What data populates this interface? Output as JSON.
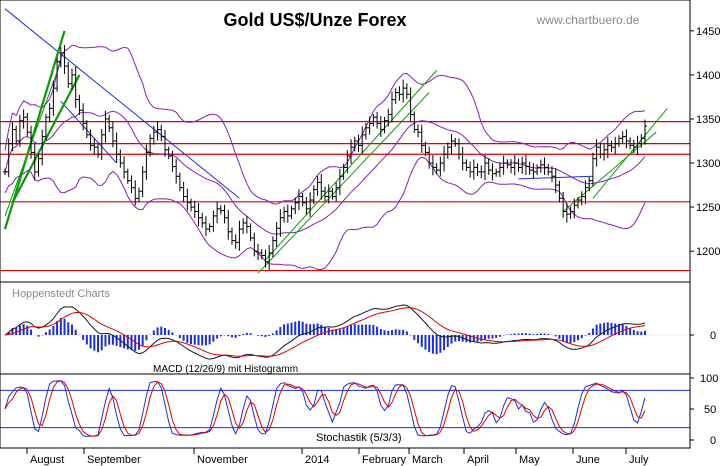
{
  "chart_data": [
    {
      "id": "price",
      "type": "ohlc",
      "title": "Gold US$/Unze Forex",
      "watermark": "www.chartbuero.de",
      "publisher": "Hoppenstedt Charts",
      "ylim": [
        1165,
        1485
      ],
      "yticks": [
        1200,
        1250,
        1300,
        1350,
        1400,
        1450
      ],
      "x_labels": [
        "August",
        "September",
        "November",
        "2014",
        "February",
        "March",
        "April",
        "May",
        "June",
        "July"
      ],
      "closes": [
        1290,
        1322,
        1338,
        1325,
        1348,
        1352,
        1335,
        1312,
        1290,
        1305,
        1330,
        1352,
        1362,
        1385,
        1415,
        1425,
        1410,
        1390,
        1400,
        1372,
        1360,
        1345,
        1332,
        1320,
        1318,
        1310,
        1332,
        1350,
        1340,
        1325,
        1310,
        1300,
        1290,
        1280,
        1272,
        1260,
        1268,
        1290,
        1312,
        1328,
        1335,
        1338,
        1330,
        1315,
        1308,
        1296,
        1285,
        1272,
        1262,
        1255,
        1250,
        1245,
        1238,
        1232,
        1225,
        1228,
        1240,
        1248,
        1246,
        1238,
        1222,
        1212,
        1210,
        1225,
        1232,
        1228,
        1215,
        1200,
        1198,
        1195,
        1188,
        1198,
        1212,
        1226,
        1238,
        1245,
        1240,
        1248,
        1255,
        1262,
        1255,
        1248,
        1258,
        1270,
        1278,
        1268,
        1262,
        1268,
        1262,
        1272,
        1285,
        1295,
        1308,
        1318,
        1325,
        1320,
        1332,
        1340,
        1345,
        1352,
        1345,
        1338,
        1348,
        1355,
        1372,
        1380,
        1378,
        1385,
        1378,
        1355,
        1338,
        1335,
        1320,
        1312,
        1300,
        1295,
        1292,
        1300,
        1310,
        1318,
        1325,
        1322,
        1310,
        1300,
        1295,
        1290,
        1295,
        1290,
        1290,
        1300,
        1292,
        1288,
        1290,
        1295,
        1300,
        1298,
        1295,
        1300,
        1295,
        1300,
        1296,
        1292,
        1290,
        1295,
        1298,
        1295,
        1290,
        1285,
        1275,
        1260,
        1245,
        1242,
        1245,
        1252,
        1258,
        1262,
        1272,
        1280,
        1305,
        1318,
        1310,
        1315,
        1320,
        1318,
        1322,
        1328,
        1330,
        1325,
        1320,
        1318,
        1322,
        1328,
        1342
      ],
      "horizontal_lines": [
        1347,
        1322,
        1310,
        1256,
        1178
      ],
      "series": [
        {
          "name": "Bollinger upper",
          "color": "#8a1fb4"
        },
        {
          "name": "Bollinger middle",
          "color": "#8a1fb4"
        },
        {
          "name": "Bollinger lower",
          "color": "#8a1fb4"
        }
      ]
    },
    {
      "id": "macd",
      "type": "line+histogram",
      "label": "MACD (12/26/9) mit Histogramm",
      "yticks": [
        0
      ],
      "series": [
        {
          "name": "MACD",
          "color": "#1a1a1a"
        },
        {
          "name": "Signal",
          "color": "#e00000"
        },
        {
          "name": "Histogramm",
          "color": "#1c2fd6"
        }
      ]
    },
    {
      "id": "stochastic",
      "type": "line",
      "label": "Stochastik (5/3/3)",
      "ylim": [
        0,
        100
      ],
      "yticks": [
        0,
        50,
        100
      ],
      "guide_lines": [
        80,
        20
      ],
      "series": [
        {
          "name": "%K",
          "color": "#1c2fd6"
        },
        {
          "name": "%D",
          "color": "#e00000"
        }
      ]
    }
  ]
}
